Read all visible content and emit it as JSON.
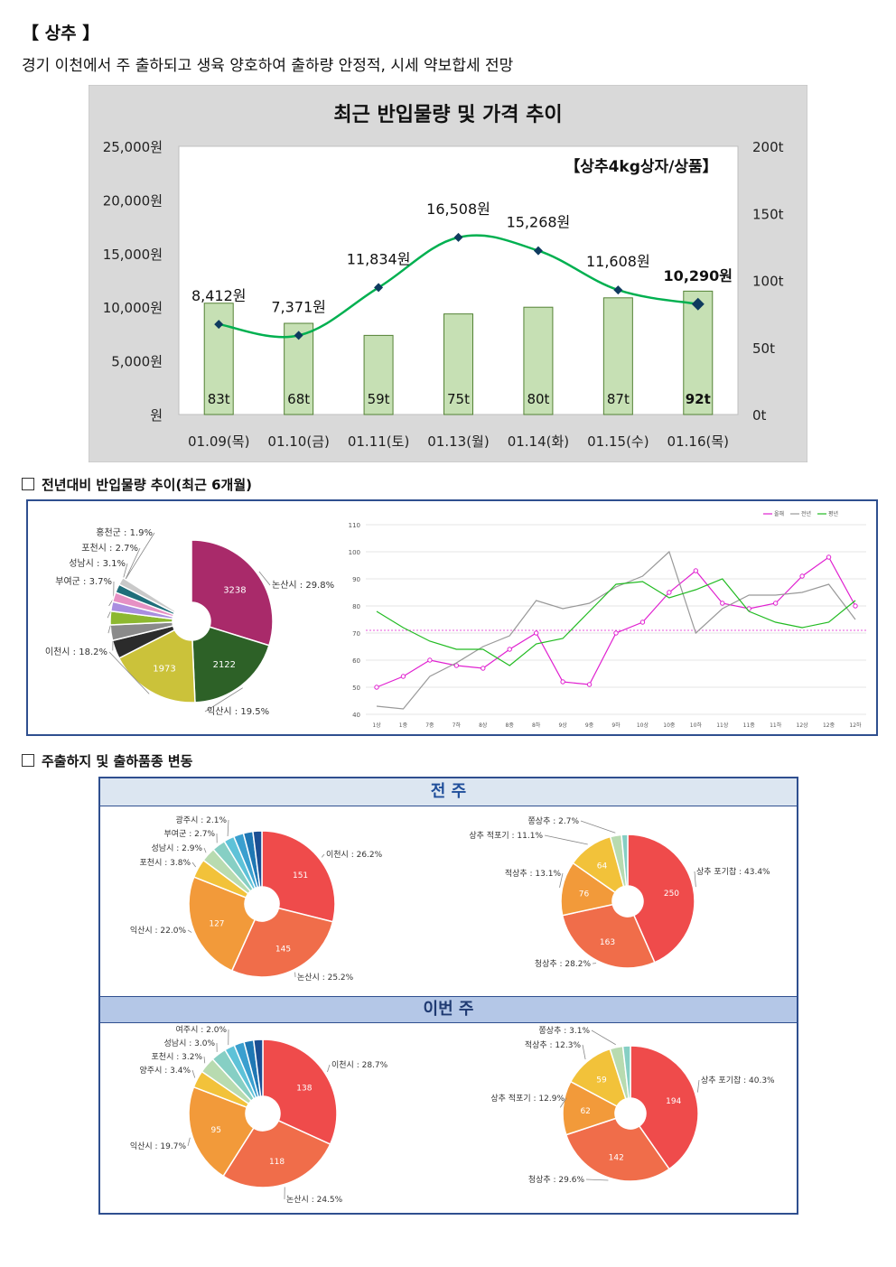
{
  "header": {
    "title": "【 상추 】",
    "subtitle": "경기 이천에서 주 출하되고 생육 양호하여 출하량 안정적, 시세 약보합세 전망"
  },
  "sections": {
    "yoy": "전년대비 반입물량 추이(최근 6개월)",
    "origin": "주출하지 및 출하품종 변동",
    "prev_week": "전 주",
    "this_week": "이번 주"
  },
  "colors": {
    "bar": "#c6e0b4",
    "bar_border": "#548235",
    "price_line": "#00b050",
    "marker": "#0f3b5f",
    "panel_border": "#2f4f8f"
  },
  "chart_data": [
    {
      "type": "bar+line",
      "title": "최근 반입물량 및 가격 추이",
      "annotation": "【상추4kg상자/상품】",
      "categories": [
        "01.09(목)",
        "01.10(금)",
        "01.11(토)",
        "01.13(월)",
        "01.14(화)",
        "01.15(수)",
        "01.16(목)"
      ],
      "volume_t": [
        83,
        68,
        59,
        75,
        80,
        87,
        92
      ],
      "volume_labels": [
        "83t",
        "68t",
        "59t",
        "75t",
        "80t",
        "87t",
        "92t"
      ],
      "price_won": [
        8412,
        7371,
        11834,
        16508,
        15268,
        11608,
        10290
      ],
      "price_labels": [
        "8,412원",
        "7,371원",
        "11,834원",
        "16,508원",
        "15,268원",
        "11,608원",
        "10,290원"
      ],
      "y_left_ticks": [
        "25,000원",
        "20,000원",
        "15,000원",
        "10,000원",
        "5,000원",
        "원"
      ],
      "y_left_range": [
        0,
        25000
      ],
      "y_right_ticks": [
        "200t",
        "150t",
        "100t",
        "50t",
        "0t"
      ],
      "y_right_range": [
        0,
        200
      ],
      "grid": false
    },
    {
      "type": "pie",
      "name": "origin_6months",
      "slices": [
        {
          "label": "논산시 : 29.8%",
          "value": 3238,
          "pct": 29.8,
          "color": "#a92a6a"
        },
        {
          "label": "익산시 : 19.5%",
          "value": 2122,
          "pct": 19.5,
          "color": "#2d6127"
        },
        {
          "label": "이천시 : 18.2%",
          "value": 1973,
          "pct": 18.2,
          "color": "#cbc23a"
        },
        {
          "label": "부여군 : 3.7%",
          "pct": 3.7,
          "color": "#2b2b2b"
        },
        {
          "label": "성남시 : 3.1%",
          "pct": 3.1,
          "color": "#8a8a8a"
        },
        {
          "label": "포천시 : 2.7%",
          "pct": 2.7,
          "color": "#8db830"
        },
        {
          "label": "홍천군 : 1.9%",
          "pct": 1.9,
          "color": "#a98ee0"
        },
        {
          "other_pct": 1.9,
          "color": "#e691c4"
        },
        {
          "other_pct": 1.7,
          "color": "#1f6e7a"
        },
        {
          "other_pct": 1.5,
          "color": "#c9c9c9"
        }
      ],
      "other_pct": 16.0,
      "other_color": "#ffffff"
    },
    {
      "type": "line",
      "name": "yoy_volume_index",
      "legend": [
        "올해",
        "전년",
        "평년"
      ],
      "legend_colors": [
        "#e020d0",
        "#999999",
        "#22bb22"
      ],
      "x": [
        "1상",
        "1중",
        "7중",
        "7하",
        "8상",
        "8중",
        "8하",
        "9상",
        "9중",
        "9하",
        "10상",
        "10중",
        "10하",
        "11상",
        "11중",
        "11하",
        "12상",
        "12중",
        "12하"
      ],
      "y_ticks": [
        "110",
        "100",
        "90",
        "80",
        "70",
        "60",
        "50",
        "40"
      ],
      "ylim": [
        40,
        110
      ],
      "series": [
        {
          "name": "올해",
          "color": "#e020d0",
          "values": [
            50,
            54,
            60,
            58,
            57,
            64,
            70,
            52,
            51,
            70,
            74,
            85,
            93,
            81,
            79,
            81,
            91,
            98,
            80
          ]
        },
        {
          "name": "전년",
          "color": "#999999",
          "values": [
            43,
            42,
            54,
            59,
            65,
            69,
            82,
            79,
            81,
            87,
            91,
            100,
            70,
            79,
            84,
            84,
            85,
            88,
            75
          ]
        },
        {
          "name": "평년",
          "color": "#22bb22",
          "values": [
            78,
            72,
            67,
            64,
            64,
            58,
            66,
            68,
            78,
            88,
            89,
            83,
            86,
            90,
            78,
            74,
            72,
            74,
            82
          ]
        }
      ],
      "reference_line": 71
    },
    {
      "type": "pie",
      "name": "prev_week_origin",
      "slices": [
        {
          "label": "이천시 : 26.2%",
          "value": 151,
          "pct": 26.2,
          "color": "#ef4b4b"
        },
        {
          "label": "논산시 : 25.2%",
          "value": 145,
          "pct": 25.2,
          "color": "#f06d4a"
        },
        {
          "label": "익산시 : 22.0%",
          "value": 127,
          "pct": 22.0,
          "color": "#f29a3a"
        },
        {
          "label": "포천시 : 3.8%",
          "pct": 3.8,
          "color": "#f2c23a"
        },
        {
          "label": "성남시 : 2.9%",
          "pct": 2.9,
          "color": "#b8dbb0"
        },
        {
          "label": "부여군 : 2.7%",
          "pct": 2.7,
          "color": "#86cfc4"
        },
        {
          "label": "광주시 : 2.1%",
          "pct": 2.1,
          "color": "#5ec2d8"
        },
        {
          "other_pct": 2.0,
          "color": "#3a9fcf"
        },
        {
          "other_pct": 1.9,
          "color": "#1f77b4"
        },
        {
          "other_pct": 1.8,
          "color": "#1b4f93"
        }
      ]
    },
    {
      "type": "pie",
      "name": "prev_week_variety",
      "slices": [
        {
          "label": "상추 포기찹 : 43.4%",
          "value": 250,
          "pct": 43.4,
          "color": "#ef4b4b"
        },
        {
          "label": "청상추 : 28.2%",
          "value": 163,
          "pct": 28.2,
          "color": "#f06d4a"
        },
        {
          "label": "적상추 : 13.1%",
          "value": 76,
          "pct": 13.1,
          "color": "#f29a3a"
        },
        {
          "label": "상추 적포기 : 11.1%",
          "value": 64,
          "pct": 11.1,
          "color": "#f2c23a"
        },
        {
          "label": "쫑상추 : 2.7%",
          "pct": 2.7,
          "color": "#b8dbb0"
        },
        {
          "other_pct": 1.5,
          "color": "#86cfc4"
        }
      ]
    },
    {
      "type": "pie",
      "name": "this_week_origin",
      "slices": [
        {
          "label": "이천시 : 28.7%",
          "value": 138,
          "pct": 28.7,
          "color": "#ef4b4b"
        },
        {
          "label": "논산시 : 24.5%",
          "value": 118,
          "pct": 24.5,
          "color": "#f06d4a"
        },
        {
          "label": "익산시 : 19.7%",
          "value": 95,
          "pct": 19.7,
          "color": "#f29a3a"
        },
        {
          "label": "양주시 : 3.4%",
          "pct": 3.4,
          "color": "#f2c23a"
        },
        {
          "label": "포천시 : 3.2%",
          "pct": 3.2,
          "color": "#b8dbb0"
        },
        {
          "label": "성남시 : 3.0%",
          "pct": 3.0,
          "color": "#86cfc4"
        },
        {
          "label": "여주시 : 2.0%",
          "pct": 2.0,
          "color": "#5ec2d8"
        },
        {
          "other_pct": 2.0,
          "color": "#3a9fcf"
        },
        {
          "other_pct": 1.9,
          "color": "#1f77b4"
        },
        {
          "other_pct": 1.8,
          "color": "#1b4f93"
        }
      ]
    },
    {
      "type": "pie",
      "name": "this_week_variety",
      "slices": [
        {
          "label": "상추 포기찹 : 40.3%",
          "value": 194,
          "pct": 40.3,
          "color": "#ef4b4b"
        },
        {
          "label": "청상추 : 29.6%",
          "value": 142,
          "pct": 29.6,
          "color": "#f06d4a"
        },
        {
          "label": "상추 적포기 : 12.9%",
          "value": 62,
          "pct": 12.9,
          "color": "#f29a3a"
        },
        {
          "label": "적상추 : 12.3%",
          "value": 59,
          "pct": 12.3,
          "color": "#f2c23a"
        },
        {
          "label": "쫑상추 : 3.1%",
          "pct": 3.1,
          "color": "#b8dbb0"
        },
        {
          "other_pct": 1.8,
          "color": "#86cfc4"
        }
      ]
    }
  ]
}
